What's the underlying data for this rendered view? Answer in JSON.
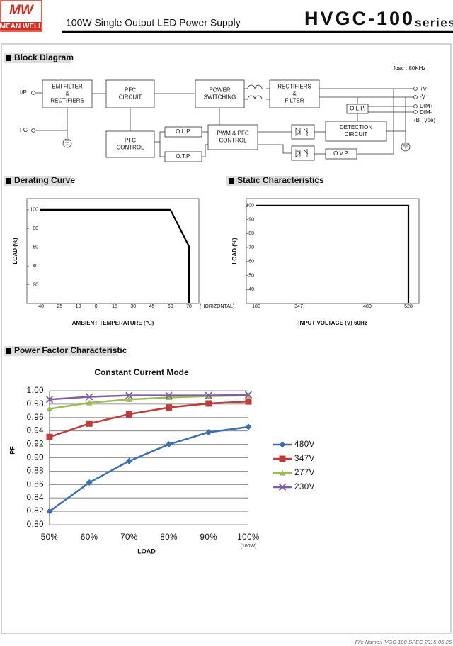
{
  "header": {
    "logo_top": "MW",
    "logo_bottom": "MEAN WELL",
    "subtitle": "100W Single Output LED Power Supply",
    "model": "HVGC-100",
    "series": "series"
  },
  "footer": "File Name:HVGC-100-SPEC   2015-05-26",
  "block_diagram": {
    "title": "Block Diagram",
    "note": "fosc : 80KHz",
    "terminals": [
      "I/P",
      "FG",
      "+V",
      "-V",
      "DIM+",
      "DIM-",
      "(B Type)"
    ],
    "nodes": [
      {
        "lines": [
          "EMI FILTER",
          "&",
          "RECTIFIERS"
        ]
      },
      {
        "lines": [
          "PFC",
          "CIRCUIT"
        ]
      },
      {
        "lines": [
          "POWER",
          "SWITCHING"
        ]
      },
      {
        "lines": [
          "RECTIFIERS",
          "&",
          "FILTER"
        ]
      },
      {
        "lines": [
          "PFC",
          "CONTROL"
        ]
      },
      {
        "lines": [
          "O.L.P."
        ]
      },
      {
        "lines": [
          "PWM & PFC",
          "CONTROL"
        ]
      },
      {
        "lines": [
          "O.T.P."
        ]
      },
      {
        "lines": [
          "DETECTION",
          "CIRCUIT"
        ]
      },
      {
        "lines": [
          "O.V.P."
        ]
      },
      {
        "lines": [
          "O.L.P."
        ]
      }
    ]
  },
  "chart_data": [
    {
      "type": "line",
      "title": "Derating Curve",
      "x_label": "AMBIENT TEMPERATURE (℃)",
      "y_label": "LOAD (%)",
      "x_note": "(HORIZONTAL)",
      "x": [
        -40,
        60,
        70,
        70
      ],
      "values": [
        100,
        100,
        61,
        0
      ],
      "xlim": [
        -40,
        70
      ],
      "ylim": [
        0,
        112
      ],
      "xticks": [
        -40,
        -25,
        -10,
        0,
        15,
        30,
        45,
        60,
        70
      ],
      "yticks": [
        20,
        40,
        60,
        80,
        100
      ],
      "color": "#000000"
    },
    {
      "type": "line",
      "title": "Static Characteristics",
      "x_label": "INPUT VOLTAGE (V) 60Hz",
      "y_label": "LOAD (%)",
      "x": [
        180,
        528,
        528
      ],
      "values": [
        100,
        100,
        30
      ],
      "xlim": [
        180,
        528
      ],
      "ylim": [
        30,
        105
      ],
      "xticks": [
        180,
        347,
        480,
        528
      ],
      "yticks": [
        40,
        50,
        60,
        70,
        80,
        90,
        100
      ],
      "color": "#000000"
    },
    {
      "type": "line",
      "section": "Power Factor Characteristic",
      "title": "Constant Current Mode",
      "x_label": "LOAD",
      "y_label": "PF",
      "categories": [
        "50%",
        "60%",
        "70%",
        "80%",
        "90%",
        "100%"
      ],
      "category_note": "(100W)",
      "ylim": [
        0.8,
        1.0
      ],
      "yticks": [
        {
          "value": 0.8,
          "label": "0.80"
        },
        {
          "value": 0.82,
          "label": "0.82"
        },
        {
          "value": 0.84,
          "label": "0.84"
        },
        {
          "value": 0.86,
          "label": "0.86"
        },
        {
          "value": 0.88,
          "label": "0.88"
        },
        {
          "value": 0.9,
          "label": "0.90"
        },
        {
          "value": 0.92,
          "label": "0.92"
        },
        {
          "value": 0.94,
          "label": "0.94"
        },
        {
          "value": 0.96,
          "label": "0.96"
        },
        {
          "value": 0.98,
          "label": "0.98"
        },
        {
          "value": 1.0,
          "label": "1.00"
        }
      ],
      "grid": true,
      "legend": "right",
      "series": [
        {
          "name": "480V",
          "color": "#3a6fb0",
          "marker": "diamond",
          "values": [
            0.82,
            0.863,
            0.895,
            0.92,
            0.938,
            0.946
          ]
        },
        {
          "name": "347V",
          "color": "#be3c3a",
          "marker": "square",
          "values": [
            0.931,
            0.951,
            0.965,
            0.975,
            0.981,
            0.984
          ]
        },
        {
          "name": "277V",
          "color": "#9bbb59",
          "marker": "triangle",
          "values": [
            0.973,
            0.982,
            0.987,
            0.99,
            0.992,
            0.993
          ]
        },
        {
          "name": "230V",
          "color": "#7e5fa0",
          "marker": "x",
          "values": [
            0.987,
            0.991,
            0.993,
            0.993,
            0.993,
            0.994
          ]
        }
      ]
    }
  ]
}
